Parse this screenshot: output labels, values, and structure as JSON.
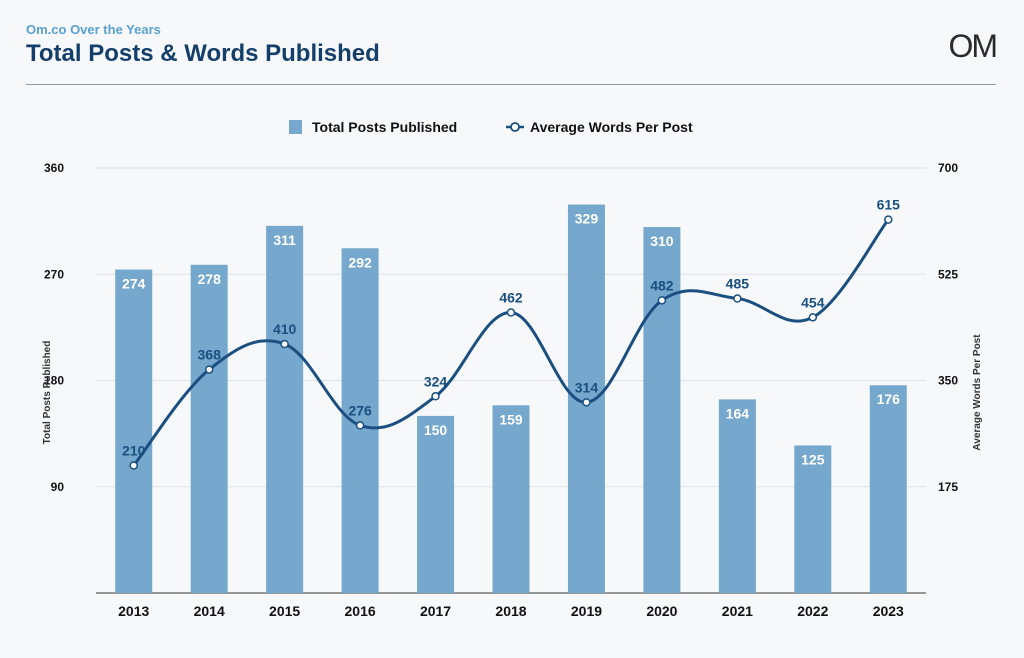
{
  "header": {
    "subtitle": "Om.co Over the Years",
    "title": "Total Posts & Words Published",
    "logo": "OM"
  },
  "colors": {
    "bar": "#75a8cc",
    "line": "#1a4f80",
    "grid": "#dfe3e8",
    "background": "#f7f8fa"
  },
  "chart_data": {
    "type": "bar+line",
    "categories": [
      "2013",
      "2014",
      "2015",
      "2016",
      "2017",
      "2018",
      "2019",
      "2020",
      "2021",
      "2022",
      "2023"
    ],
    "series": [
      {
        "name": "Total Posts Published",
        "type": "bar",
        "axis": "left",
        "values": [
          274,
          278,
          311,
          292,
          150,
          159,
          329,
          310,
          164,
          125,
          176
        ]
      },
      {
        "name": "Average Words Per Post",
        "type": "line",
        "axis": "right",
        "values": [
          210,
          368,
          410,
          276,
          324,
          462,
          314,
          482,
          485,
          454,
          615
        ]
      }
    ],
    "ylabel": "Total Posts Published",
    "y2label": "Average Words Per Post",
    "ylim": [
      0,
      360
    ],
    "y2lim": [
      0,
      700
    ],
    "yticks": [
      90,
      180,
      270,
      360
    ],
    "y2ticks": [
      175,
      350,
      525,
      700
    ],
    "legend_position": "top-center",
    "grid": true
  }
}
